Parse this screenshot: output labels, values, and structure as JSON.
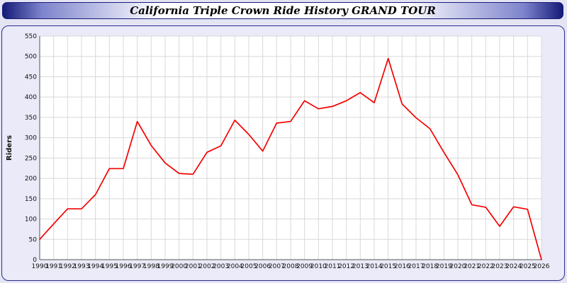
{
  "title": "California Triple Crown Ride History GRAND TOUR",
  "colors": {
    "page_background": "#e4e4f3",
    "panel_background": "#eaeaf8",
    "border": "#2a2f8f",
    "title_bar_edge": "#141a78",
    "grid": "#d9d9d9",
    "axis": "#555555",
    "line": "#f40000"
  },
  "chart_data": {
    "type": "line",
    "title": "California Triple Crown Ride History GRAND TOUR",
    "xlabel": "",
    "ylabel": "Riders",
    "ylim": [
      0,
      550
    ],
    "y_tick_step": 50,
    "grid": true,
    "legend": "none",
    "x": [
      1990,
      1991,
      1992,
      1993,
      1994,
      1995,
      1996,
      1997,
      1998,
      1999,
      2000,
      2001,
      2002,
      2003,
      2004,
      2005,
      2006,
      2007,
      2008,
      2009,
      2010,
      2011,
      2012,
      2013,
      2014,
      2015,
      2016,
      2017,
      2018,
      2019,
      2020,
      2021,
      2022,
      2023,
      2024,
      2025,
      2026
    ],
    "series": [
      {
        "name": "Riders",
        "color": "#f40000",
        "values": [
          50,
          88,
          125,
          125,
          160,
          224,
          224,
          340,
          281,
          238,
          212,
          210,
          264,
          280,
          343,
          308,
          267,
          336,
          340,
          391,
          371,
          377,
          391,
          411,
          386,
          495,
          383,
          349,
          322,
          264,
          209,
          135,
          129,
          82,
          130,
          124,
          0
        ]
      }
    ]
  }
}
